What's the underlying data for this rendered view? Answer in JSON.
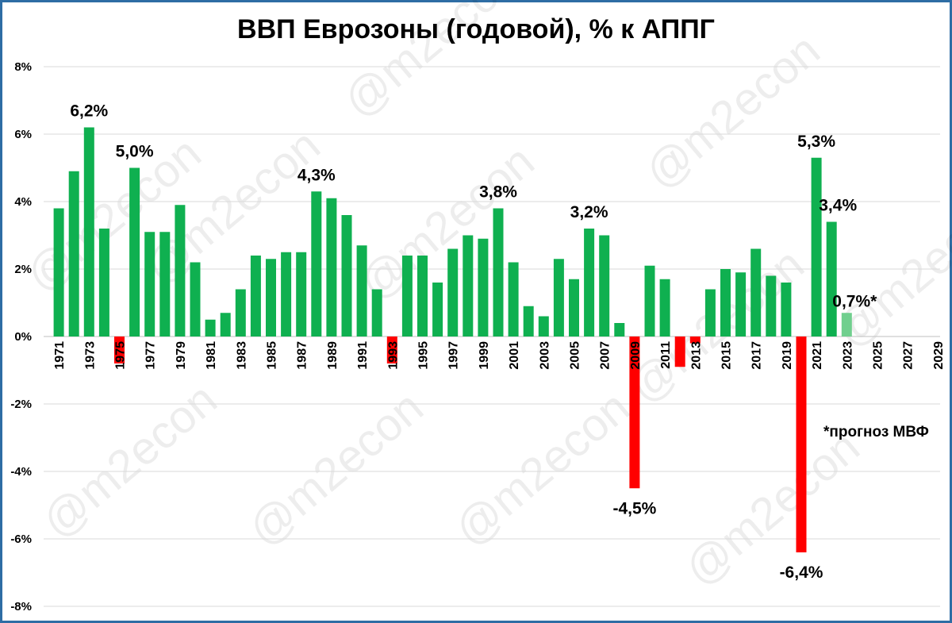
{
  "chart_data": {
    "type": "bar",
    "title": "ВВП Еврозоны (годовой), % к АППГ",
    "xlabel": "",
    "ylabel": "",
    "ylim": [
      -8,
      8
    ],
    "yticks": [
      "-8%",
      "-6%",
      "-4%",
      "-2%",
      "0%",
      "2%",
      "4%",
      "6%",
      "8%"
    ],
    "ytick_values": [
      -8,
      -6,
      -4,
      -2,
      0,
      2,
      4,
      6,
      8
    ],
    "grid": true,
    "x_start_year": 1971,
    "x_end_year": 2029,
    "xtick_labels": [
      "1971",
      "1973",
      "1975",
      "1977",
      "1979",
      "1981",
      "1983",
      "1985",
      "1987",
      "1989",
      "1991",
      "1993",
      "1995",
      "1997",
      "1999",
      "2001",
      "2003",
      "2005",
      "2007",
      "2009",
      "2011",
      "2013",
      "2015",
      "2017",
      "2019",
      "2021",
      "2023",
      "2025",
      "2027",
      "2029"
    ],
    "categories": [
      "1971",
      "1972",
      "1973",
      "1974",
      "1975",
      "1976",
      "1977",
      "1978",
      "1979",
      "1980",
      "1981",
      "1982",
      "1983",
      "1984",
      "1985",
      "1986",
      "1987",
      "1988",
      "1989",
      "1990",
      "1991",
      "1992",
      "1993",
      "1994",
      "1995",
      "1996",
      "1997",
      "1998",
      "1999",
      "2000",
      "2001",
      "2002",
      "2003",
      "2004",
      "2005",
      "2006",
      "2007",
      "2008",
      "2009",
      "2010",
      "2011",
      "2012",
      "2013",
      "2014",
      "2015",
      "2016",
      "2017",
      "2018",
      "2019",
      "2020",
      "2021",
      "2022",
      "2023"
    ],
    "values": [
      3.8,
      4.9,
      6.2,
      3.2,
      -0.8,
      5.0,
      3.1,
      3.1,
      3.9,
      2.2,
      0.5,
      0.7,
      1.4,
      2.4,
      2.3,
      2.5,
      2.5,
      4.3,
      4.1,
      3.6,
      2.7,
      1.4,
      -0.8,
      2.4,
      2.4,
      1.6,
      2.6,
      3.0,
      2.9,
      3.8,
      2.2,
      0.9,
      0.6,
      2.3,
      1.7,
      3.2,
      3.0,
      0.4,
      -4.5,
      2.1,
      1.7,
      -0.9,
      -0.2,
      1.4,
      2.0,
      1.9,
      2.6,
      1.8,
      1.6,
      -6.4,
      5.3,
      3.4,
      0.7
    ],
    "forecast_years": [
      "2023"
    ],
    "colors": {
      "positive": "#0fb050",
      "negative": "#ff0000",
      "forecast": "#70cf8e",
      "grid": "#d9d9d9"
    },
    "data_labels": [
      {
        "year": "1973",
        "text": "6,2%"
      },
      {
        "year": "1976",
        "text": "5,0%"
      },
      {
        "year": "1988",
        "text": "4,3%"
      },
      {
        "year": "2000",
        "text": "3,8%"
      },
      {
        "year": "2006",
        "text": "3,2%"
      },
      {
        "year": "2009",
        "text": "-4,5%"
      },
      {
        "year": "2020",
        "text": "-6,4%"
      },
      {
        "year": "2021",
        "text": "5,3%"
      },
      {
        "year": "2022",
        "text": "3,4%"
      },
      {
        "year": "2023",
        "text": "0,7%*"
      }
    ]
  },
  "note": "*прогноз МВФ",
  "watermark": "@m2econ"
}
